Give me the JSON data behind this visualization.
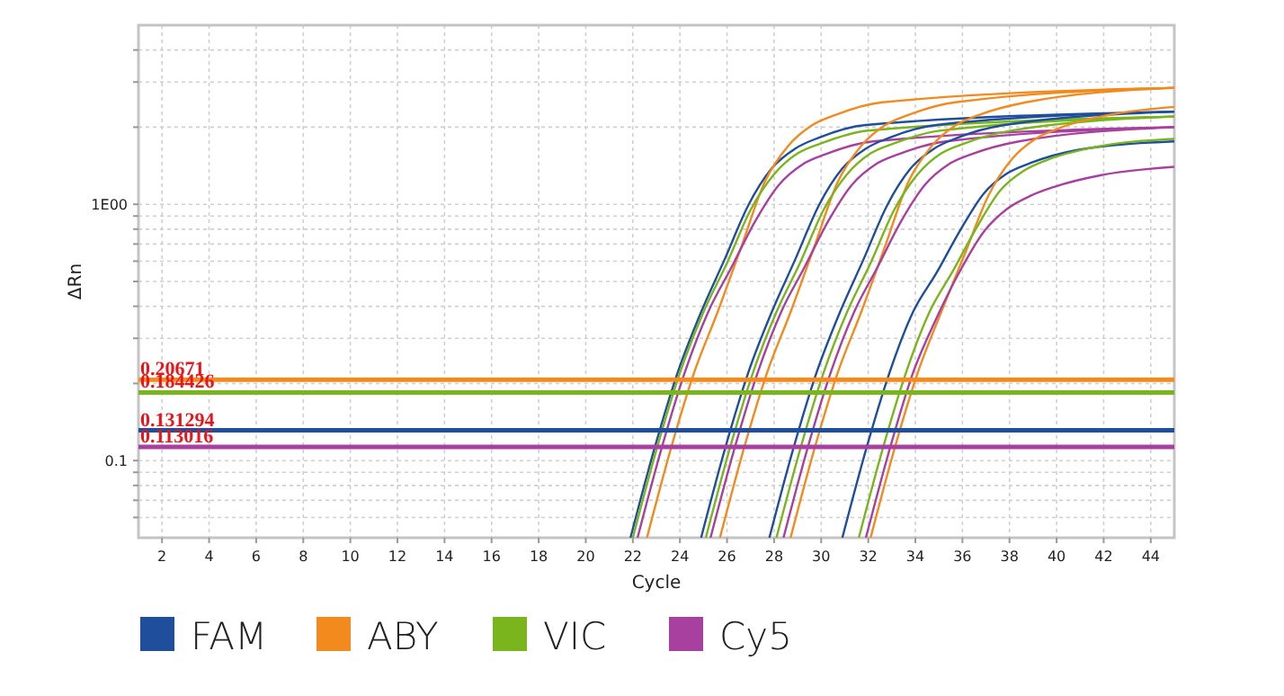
{
  "chart_data": {
    "type": "line",
    "xlabel": "Cycle",
    "ylabel": "ΔRn",
    "log": "y",
    "grid": true,
    "legend": "bottom",
    "marker": "none",
    "line_style": "solid",
    "xlim": [
      1,
      45
    ],
    "xticks": [
      2,
      4,
      6,
      8,
      10,
      12,
      14,
      16,
      18,
      20,
      22,
      24,
      26,
      28,
      30,
      32,
      34,
      36,
      38,
      40,
      42,
      44
    ],
    "ylim": [
      0.05,
      5
    ],
    "yticks": [
      {
        "value": 0.06,
        "label": null
      },
      {
        "value": 0.07,
        "label": null
      },
      {
        "value": 0.08,
        "label": null
      },
      {
        "value": 0.09,
        "label": null
      },
      {
        "value": 0.1,
        "label": "0.1"
      },
      {
        "value": 0.2,
        "label": null
      },
      {
        "value": 0.3,
        "label": null
      },
      {
        "value": 0.4,
        "label": null
      },
      {
        "value": 0.5,
        "label": null
      },
      {
        "value": 0.6,
        "label": null
      },
      {
        "value": 0.7,
        "label": null
      },
      {
        "value": 0.8,
        "label": null
      },
      {
        "value": 0.9,
        "label": null
      },
      {
        "value": 1,
        "label": "1E00"
      },
      {
        "value": 2,
        "label": null
      },
      {
        "value": 3,
        "label": null
      },
      {
        "value": 4,
        "label": null
      }
    ],
    "series": [
      {
        "name": "FAM",
        "color": "#1f4e9c",
        "x": [
          21.9,
          22.9,
          23.9,
          24.9,
          25.9,
          26.9,
          27.9,
          28.9,
          29.9,
          31.9,
          45
        ],
        "values": [
          0.05,
          0.11,
          0.22,
          0.38,
          0.61,
          0.99,
          1.38,
          1.65,
          1.82,
          2.04,
          2.3
        ]
      },
      {
        "name": "ABY",
        "color": "#f28a1e",
        "x": [
          22.6,
          23.6,
          24.6,
          25.6,
          26.6,
          27.6,
          28.6,
          29.6,
          30.6,
          32.6,
          45
        ],
        "values": [
          0.05,
          0.11,
          0.22,
          0.38,
          0.68,
          1.22,
          1.69,
          2.03,
          2.23,
          2.5,
          2.85
        ]
      },
      {
        "name": "VIC",
        "color": "#7ab51d",
        "x": [
          22,
          23,
          24,
          25,
          26,
          27,
          28,
          29,
          30,
          32,
          45
        ],
        "values": [
          0.05,
          0.11,
          0.22,
          0.38,
          0.59,
          0.95,
          1.31,
          1.58,
          1.73,
          1.94,
          2.2
        ]
      },
      {
        "name": "Cy5",
        "color": "#a8409f",
        "x": [
          22.2,
          23.2,
          24.2,
          25.2,
          26.2,
          27.2,
          28.2,
          29.2,
          30.2,
          32.2,
          45
        ],
        "values": [
          0.05,
          0.11,
          0.22,
          0.38,
          0.57,
          0.86,
          1.19,
          1.43,
          1.57,
          1.76,
          2.0
        ]
      },
      {
        "color": "#1f4e9c",
        "x": [
          24.9,
          25.9,
          26.9,
          27.9,
          28.9,
          29.9,
          30.9,
          31.9,
          32.9,
          34.9,
          45
        ],
        "values": [
          0.05,
          0.11,
          0.22,
          0.38,
          0.61,
          0.99,
          1.38,
          1.65,
          1.82,
          2.04,
          2.3
        ]
      },
      {
        "color": "#f28a1e",
        "x": [
          25.7,
          26.7,
          27.7,
          28.7,
          29.7,
          30.7,
          31.7,
          32.7,
          33.7,
          35.7,
          45
        ],
        "values": [
          0.05,
          0.11,
          0.22,
          0.38,
          0.68,
          1.22,
          1.69,
          2.03,
          2.23,
          2.5,
          2.85
        ]
      },
      {
        "color": "#7ab51d",
        "x": [
          25.1,
          26.1,
          27.1,
          28.1,
          29.1,
          30.1,
          31.1,
          32.1,
          33.1,
          35.1,
          45
        ],
        "values": [
          0.05,
          0.11,
          0.22,
          0.38,
          0.59,
          0.95,
          1.31,
          1.58,
          1.73,
          1.94,
          2.2
        ]
      },
      {
        "color": "#a8409f",
        "x": [
          25.3,
          26.3,
          27.3,
          28.3,
          29.3,
          30.3,
          31.3,
          32.3,
          33.3,
          35.3,
          45
        ],
        "values": [
          0.05,
          0.11,
          0.22,
          0.38,
          0.57,
          0.86,
          1.19,
          1.43,
          1.57,
          1.76,
          2.0
        ]
      },
      {
        "color": "#1f4e9c",
        "x": [
          27.8,
          28.8,
          29.8,
          30.8,
          31.8,
          32.8,
          33.8,
          34.8,
          35.8,
          37.8,
          45
        ],
        "values": [
          0.05,
          0.11,
          0.22,
          0.38,
          0.61,
          0.99,
          1.38,
          1.65,
          1.82,
          2.04,
          2.3
        ]
      },
      {
        "color": "#f28a1e",
        "x": [
          28.7,
          29.7,
          30.7,
          31.7,
          32.7,
          33.7,
          34.7,
          35.7,
          36.7,
          38.7,
          45
        ],
        "values": [
          0.05,
          0.11,
          0.22,
          0.38,
          0.68,
          1.22,
          1.69,
          2.03,
          2.23,
          2.5,
          2.85
        ]
      },
      {
        "color": "#7ab51d",
        "x": [
          28.1,
          29.1,
          30.1,
          31.1,
          32.1,
          33.1,
          34.1,
          35.1,
          36.1,
          38.1,
          45
        ],
        "values": [
          0.05,
          0.11,
          0.22,
          0.38,
          0.59,
          0.95,
          1.31,
          1.58,
          1.73,
          1.94,
          2.2
        ]
      },
      {
        "color": "#a8409f",
        "x": [
          28.4,
          29.4,
          30.4,
          31.4,
          32.4,
          33.4,
          34.4,
          35.4,
          36.4,
          38.4,
          45
        ],
        "values": [
          0.05,
          0.11,
          0.22,
          0.38,
          0.57,
          0.86,
          1.19,
          1.43,
          1.57,
          1.76,
          2.0
        ]
      },
      {
        "color": "#1f4e9c",
        "x": [
          30.9,
          31.9,
          32.9,
          33.9,
          34.9,
          35.9,
          36.9,
          37.9,
          38.9,
          40.9,
          45
        ],
        "values": [
          0.05,
          0.11,
          0.22,
          0.38,
          0.54,
          0.79,
          1.1,
          1.32,
          1.45,
          1.63,
          1.76
        ]
      },
      {
        "color": "#f28a1e",
        "x": [
          32.1,
          33.1,
          34.1,
          35.1,
          36.1,
          37.1,
          38.1,
          39.1,
          40.1,
          42.1,
          45
        ],
        "values": [
          0.05,
          0.11,
          0.22,
          0.38,
          0.64,
          1.08,
          1.5,
          1.8,
          1.98,
          2.22,
          2.4
        ]
      },
      {
        "color": "#7ab51d",
        "x": [
          31.6,
          32.6,
          33.6,
          34.6,
          35.6,
          36.6,
          37.6,
          38.6,
          39.6,
          41.6,
          45
        ],
        "values": [
          0.05,
          0.11,
          0.22,
          0.38,
          0.55,
          0.81,
          1.13,
          1.35,
          1.49,
          1.67,
          1.8
        ]
      },
      {
        "color": "#a8409f",
        "x": [
          31.9,
          32.9,
          33.9,
          34.9,
          35.9,
          36.9,
          37.9,
          38.9,
          39.9,
          41.9,
          45
        ],
        "values": [
          0.05,
          0.11,
          0.22,
          0.36,
          0.55,
          0.78,
          0.96,
          1.08,
          1.17,
          1.3,
          1.4
        ]
      }
    ],
    "ref_lines": [
      {
        "axis": "y",
        "value": 0.20671,
        "label": "0.20671",
        "color": "#f28a1e"
      },
      {
        "axis": "y",
        "value": 0.184426,
        "label": "0.184426",
        "color": "#7ab51d"
      },
      {
        "axis": "y",
        "value": 0.131294,
        "label": "0.131294",
        "color": "#1f4e9c"
      },
      {
        "axis": "y",
        "value": 0.113016,
        "label": "0.113016",
        "color": "#a8409f"
      }
    ]
  }
}
